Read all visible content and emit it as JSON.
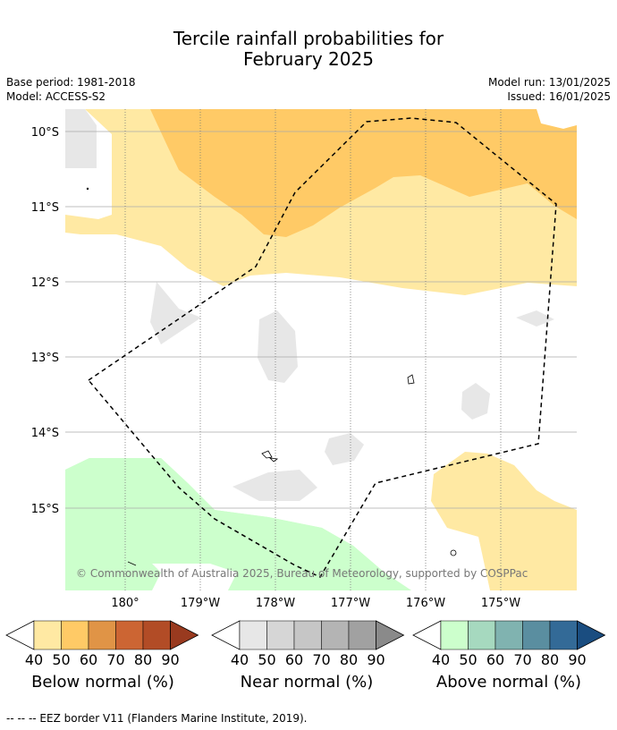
{
  "title_line1": "Tercile rainfall probabilities for",
  "title_line2": "February 2025",
  "base_period": "Base period: 1981-2018",
  "model": "Model: ACCESS-S2",
  "model_run": "Model run: 13/01/2025",
  "issued": "Issued: 16/01/2025",
  "lat_labels": [
    "10°S",
    "11°S",
    "12°S",
    "13°S",
    "14°S",
    "15°S"
  ],
  "lon_labels": [
    "180°",
    "179°W",
    "178°W",
    "177°W",
    "176°W",
    "175°W"
  ],
  "copyright": "© Commonwealth of Australia 2025, Bureau of Meteorology, supported by COSPPac",
  "colorbars": [
    {
      "label": "Below normal (%)",
      "ticks": [
        "40",
        "50",
        "60",
        "70",
        "80",
        "90"
      ],
      "colors": [
        "#ffe9a3",
        "#ffca66",
        "#e09446",
        "#cc6533",
        "#b24c26",
        "#993a1f"
      ]
    },
    {
      "label": "Near normal (%)",
      "ticks": [
        "40",
        "50",
        "60",
        "70",
        "80",
        "90"
      ],
      "colors": [
        "#e7e7e7",
        "#d6d6d6",
        "#c6c6c6",
        "#b4b4b4",
        "#a1a1a1",
        "#8a8a8a"
      ]
    },
    {
      "label": "Above normal (%)",
      "ticks": [
        "40",
        "50",
        "60",
        "70",
        "80",
        "90"
      ],
      "colors": [
        "#ccffcc",
        "#a6d9bf",
        "#80b3b0",
        "#5a8ea0",
        "#336a97",
        "#1a4d80"
      ]
    }
  ],
  "footnote": "--  --  -- EEZ border V11 (Flanders Marine Institute, 2019)."
}
